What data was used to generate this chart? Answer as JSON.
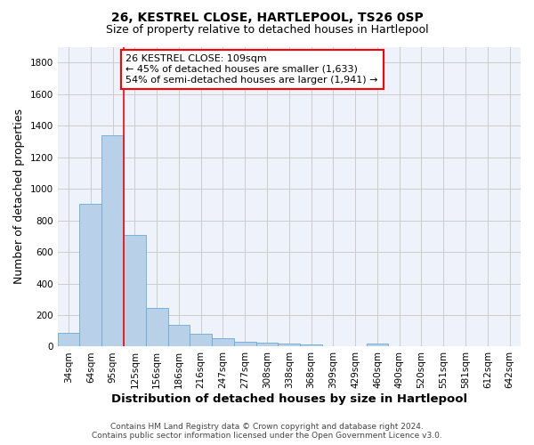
{
  "title": "26, KESTREL CLOSE, HARTLEPOOL, TS26 0SP",
  "subtitle": "Size of property relative to detached houses in Hartlepool",
  "xlabel": "Distribution of detached houses by size in Hartlepool",
  "ylabel": "Number of detached properties",
  "footer_line1": "Contains HM Land Registry data © Crown copyright and database right 2024.",
  "footer_line2": "Contains public sector information licensed under the Open Government Licence v3.0.",
  "categories": [
    "34sqm",
    "64sqm",
    "95sqm",
    "125sqm",
    "156sqm",
    "186sqm",
    "216sqm",
    "247sqm",
    "277sqm",
    "308sqm",
    "338sqm",
    "368sqm",
    "399sqm",
    "429sqm",
    "460sqm",
    "490sqm",
    "520sqm",
    "551sqm",
    "581sqm",
    "612sqm",
    "642sqm"
  ],
  "values": [
    85,
    905,
    1340,
    705,
    245,
    140,
    80,
    55,
    30,
    25,
    20,
    15,
    0,
    0,
    20,
    0,
    0,
    0,
    0,
    0,
    0
  ],
  "bar_color": "#b8d0e8",
  "bar_edge_color": "#6aaad4",
  "vline_x": 2.5,
  "vline_color": "red",
  "annotation_text": "26 KESTREL CLOSE: 109sqm\n← 45% of detached houses are smaller (1,633)\n54% of semi-detached houses are larger (1,941) →",
  "annotation_box_color": "red",
  "ylim": [
    0,
    1900
  ],
  "yticks": [
    0,
    200,
    400,
    600,
    800,
    1000,
    1200,
    1400,
    1600,
    1800
  ],
  "grid_color": "#cccccc",
  "bg_color": "#eef2fa",
  "title_fontsize": 10,
  "subtitle_fontsize": 9,
  "axis_label_fontsize": 9,
  "tick_fontsize": 7.5,
  "footer_fontsize": 6.5,
  "ann_fontsize": 8
}
